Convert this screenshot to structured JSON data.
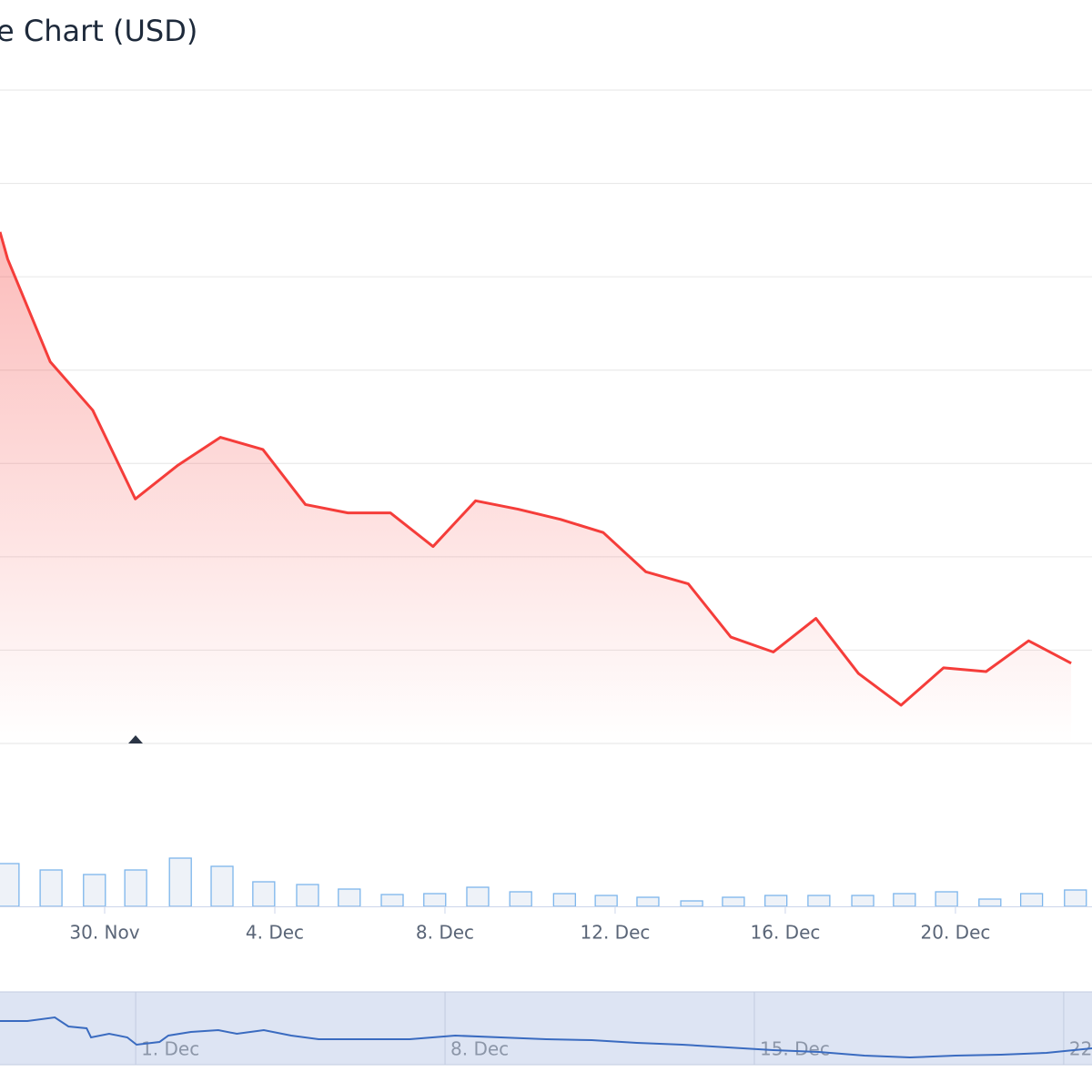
{
  "chart_data": [
    {
      "type": "area",
      "title": "e Chart (USD)",
      "color": "#f53d3a",
      "x": [
        -2.46,
        -2.28,
        -1.28,
        -0.28,
        0.72,
        1.72,
        2.72,
        3.72,
        4.72,
        5.72,
        6.72,
        7.72,
        8.72,
        9.72,
        10.72,
        11.72,
        12.72,
        13.72,
        14.72,
        15.72,
        16.72,
        17.72,
        18.72,
        19.72,
        20.72,
        21.72,
        22.72
      ],
      "values": [
        5.48,
        5.19,
        4.09,
        3.57,
        2.62,
        2.98,
        3.28,
        3.15,
        2.56,
        2.47,
        2.47,
        2.11,
        2.6,
        2.51,
        2.4,
        2.26,
        1.84,
        1.71,
        1.14,
        0.98,
        1.34,
        0.75,
        0.41,
        0.81,
        0.77,
        1.1,
        0.86
      ],
      "xlim": [
        -2.46,
        23.21
      ],
      "ylim": [
        0,
        7
      ],
      "gridlines": [
        0,
        1,
        2,
        3,
        4,
        5,
        6,
        7
      ]
    },
    {
      "type": "bar",
      "color": "#7cb5ec",
      "x": [
        -2.27,
        -1.26,
        -0.24,
        0.73,
        1.78,
        2.76,
        3.74,
        4.77,
        5.75,
        6.76,
        7.76,
        8.77,
        9.78,
        10.81,
        11.79,
        12.77,
        13.8,
        14.78,
        15.78,
        16.79,
        17.82,
        18.8,
        19.79,
        20.81,
        21.79,
        22.82
      ],
      "values": [
        47,
        40,
        35,
        40,
        53,
        44,
        27,
        24,
        19,
        13,
        14,
        21,
        16,
        14,
        12,
        10,
        6,
        10,
        12,
        12,
        12,
        14,
        16,
        8,
        14,
        18
      ],
      "xlim": [
        -2.46,
        23.21
      ],
      "ylim": [
        0,
        100
      ],
      "xticks": [
        {
          "value": 0,
          "label": "30. Nov"
        },
        {
          "value": 4,
          "label": "4. Dec"
        },
        {
          "value": 8,
          "label": "8. Dec"
        },
        {
          "value": 12,
          "label": "12. Dec"
        },
        {
          "value": 16,
          "label": "16. Dec"
        },
        {
          "value": 20,
          "label": "20. Dec"
        }
      ]
    },
    {
      "type": "line",
      "color": "#3a6bc0",
      "x": [
        -3.07,
        -2.45,
        -1.83,
        -1.52,
        -1.11,
        -1.01,
        -0.6,
        -0.19,
        0.02,
        0.54,
        0.74,
        1.25,
        1.87,
        2.29,
        2.9,
        3.52,
        4.14,
        5.17,
        6.2,
        7.23,
        8.26,
        9.29,
        10.32,
        11.34,
        12.37,
        13.4,
        14.43,
        15.46,
        16.49,
        17.52,
        18.55,
        19.58,
        20.61,
        21.64
      ],
      "values": [
        48,
        48,
        52,
        42,
        40,
        30,
        34,
        30,
        22,
        25,
        32,
        36,
        38,
        34,
        38,
        32,
        28,
        28,
        28,
        32,
        30,
        28,
        27,
        24,
        22,
        19,
        16,
        14,
        10,
        8,
        10,
        11,
        13,
        18
      ],
      "xlim": [
        -3.07,
        21.64
      ],
      "ylim": [
        0,
        80
      ],
      "xticks": [
        {
          "value": 0,
          "label": "1. Dec"
        },
        {
          "value": 7,
          "label": "8. Dec"
        },
        {
          "value": 14,
          "label": "15. Dec"
        },
        {
          "value": 21,
          "label": "22."
        }
      ]
    }
  ]
}
